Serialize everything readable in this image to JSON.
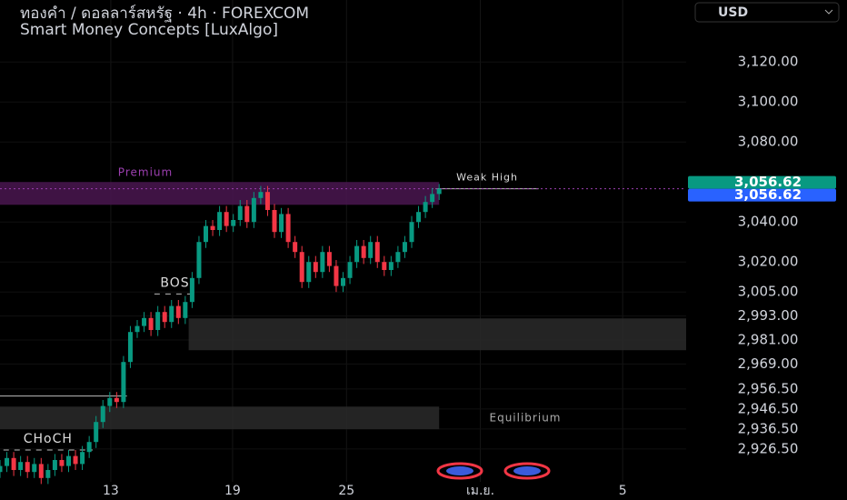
{
  "header": {
    "title": "ทองคำ / ดอลลาร์สหรัฐ · 4h · FOREXCOM",
    "indicator": "Smart Money Concepts [LuxAlgo]",
    "currency": "USD"
  },
  "chart_data": {
    "type": "candlestick",
    "up_color": "#089981",
    "down_color": "#f23645",
    "xlim": [
      0,
      200
    ],
    "ylim": [
      2901,
      3151
    ],
    "xticks": [
      {
        "value": 32.3,
        "label": "13"
      },
      {
        "value": 67.8,
        "label": "19"
      },
      {
        "value": 101,
        "label": "25"
      },
      {
        "value": 140,
        "label": "เม.ย."
      },
      {
        "value": 181.5,
        "label": "5"
      }
    ],
    "yticks": [
      {
        "value": 3120,
        "label": "3,120.00"
      },
      {
        "value": 3100,
        "label": "3,100.00"
      },
      {
        "value": 3080,
        "label": "3,080.00"
      },
      {
        "value": 3040,
        "label": "3,040.00"
      },
      {
        "value": 3020,
        "label": "3,020.00"
      },
      {
        "value": 3005,
        "label": "3,005.00"
      },
      {
        "value": 2993,
        "label": "2,993.00"
      },
      {
        "value": 2981,
        "label": "2,981.00"
      },
      {
        "value": 2969,
        "label": "2,969.00"
      },
      {
        "value": 2956.5,
        "label": "2,956.50"
      },
      {
        "value": 2946.5,
        "label": "2,946.50"
      },
      {
        "value": 2936.5,
        "label": "2,936.50"
      },
      {
        "value": 2926.5,
        "label": "2,926.50"
      }
    ],
    "price_labels": [
      {
        "value": 3056.62,
        "label": "3,056.62",
        "color": "#089981"
      },
      {
        "value": 3056.62,
        "label": "3,056.62",
        "color": "#2962ff"
      }
    ],
    "zones": [
      {
        "label": "Premium",
        "y": [
          3048.6,
          3060
        ],
        "x": [
          0,
          128
        ],
        "color": "#4a1650"
      },
      {
        "y": [
          2975.9,
          2991.8
        ],
        "x": [
          55,
          200
        ],
        "color": "#2a2a2a"
      },
      {
        "label": "Equilibrium",
        "y": [
          2936.4,
          2947.7
        ],
        "x": [
          0,
          128
        ],
        "color": "#2a2a2a"
      }
    ],
    "lines": [
      {
        "label": "Weak High",
        "y": 3056.62,
        "x": [
          127,
          157
        ]
      },
      {
        "label": "BOS",
        "y": 3004,
        "x": [
          45,
          57
        ]
      },
      {
        "label": "CHoCH",
        "y": 2926,
        "x": [
          1,
          27
        ]
      },
      {
        "y": 2953,
        "x": [
          0,
          37
        ]
      }
    ],
    "x": [
      0,
      2,
      4,
      6,
      8,
      10,
      12,
      14,
      16,
      18,
      20,
      22,
      24,
      26,
      28,
      30,
      32,
      34,
      36,
      38,
      40,
      42,
      44,
      46,
      48,
      50,
      52,
      54,
      56,
      58,
      60,
      62,
      64,
      66,
      68,
      70,
      72,
      74,
      76,
      78,
      80,
      82,
      84,
      86,
      88,
      90,
      92,
      94,
      96,
      98,
      100,
      102,
      104,
      106,
      108,
      110,
      112,
      114,
      116,
      118,
      120,
      122,
      124,
      126,
      128
    ],
    "ohlc": [
      [
        2915,
        2921,
        2912,
        2918
      ],
      [
        2918,
        2925,
        2915,
        2922
      ],
      [
        2922,
        2925,
        2913,
        2916
      ],
      [
        2916,
        2923,
        2913,
        2920
      ],
      [
        2920,
        2923,
        2912,
        2915
      ],
      [
        2915,
        2922,
        2912,
        2919
      ],
      [
        2919,
        2922,
        2909,
        2912
      ],
      [
        2912,
        2919,
        2909,
        2916
      ],
      [
        2916,
        2924,
        2913,
        2921
      ],
      [
        2921,
        2924,
        2915,
        2918
      ],
      [
        2918,
        2926,
        2915,
        2923
      ],
      [
        2923,
        2926,
        2916,
        2919
      ],
      [
        2919,
        2928,
        2916,
        2925
      ],
      [
        2925,
        2933,
        2922,
        2930
      ],
      [
        2930,
        2943,
        2927,
        2940
      ],
      [
        2940,
        2951,
        2937,
        2948
      ],
      [
        2948,
        2955,
        2945,
        2952
      ],
      [
        2952,
        2955,
        2947,
        2950
      ],
      [
        2950,
        2973,
        2947,
        2970
      ],
      [
        2970,
        2988,
        2967,
        2985
      ],
      [
        2985,
        2991,
        2982,
        2988
      ],
      [
        2988,
        2995,
        2985,
        2992
      ],
      [
        2992,
        2995,
        2983,
        2986
      ],
      [
        2986,
        2998,
        2983,
        2995
      ],
      [
        2995,
        2998,
        2987,
        2990
      ],
      [
        2990,
        3001,
        2987,
        2998
      ],
      [
        2998,
        3001,
        2989,
        2992
      ],
      [
        2992,
        3003,
        2989,
        3000
      ],
      [
        3000,
        3015,
        2997,
        3012
      ],
      [
        3012,
        3033,
        3009,
        3030
      ],
      [
        3030,
        3041,
        3027,
        3038
      ],
      [
        3038,
        3041,
        3033,
        3036
      ],
      [
        3036,
        3048,
        3033,
        3045
      ],
      [
        3045,
        3048,
        3035,
        3038
      ],
      [
        3038,
        3044,
        3035,
        3041
      ],
      [
        3041,
        3051,
        3038,
        3048
      ],
      [
        3048,
        3051,
        3037,
        3040
      ],
      [
        3040,
        3055,
        3037,
        3052
      ],
      [
        3052,
        3058,
        3049,
        3055
      ],
      [
        3055,
        3058,
        3043,
        3046
      ],
      [
        3046,
        3049,
        3032,
        3035
      ],
      [
        3035,
        3047,
        3032,
        3044
      ],
      [
        3044,
        3047,
        3027,
        3030
      ],
      [
        3030,
        3033,
        3022,
        3025
      ],
      [
        3025,
        3028,
        3007,
        3010
      ],
      [
        3010,
        3023,
        3007,
        3020
      ],
      [
        3020,
        3023,
        3012,
        3015
      ],
      [
        3015,
        3028,
        3012,
        3025
      ],
      [
        3025,
        3028,
        3015,
        3018
      ],
      [
        3018,
        3021,
        3005,
        3008
      ],
      [
        3008,
        3015,
        3005,
        3012
      ],
      [
        3012,
        3023,
        3009,
        3020
      ],
      [
        3020,
        3031,
        3017,
        3028
      ],
      [
        3028,
        3031,
        3019,
        3022
      ],
      [
        3022,
        3033,
        3019,
        3030
      ],
      [
        3030,
        3033,
        3017,
        3020
      ],
      [
        3020,
        3023,
        3013,
        3016
      ],
      [
        3016,
        3023,
        3013,
        3020
      ],
      [
        3020,
        3028,
        3017,
        3025
      ],
      [
        3025,
        3033,
        3022,
        3030
      ],
      [
        3030,
        3043,
        3027,
        3040
      ],
      [
        3040,
        3048,
        3037,
        3045
      ],
      [
        3045,
        3053,
        3042,
        3050
      ],
      [
        3050,
        3057,
        3047,
        3054
      ],
      [
        3054,
        3059,
        3051,
        3056.62
      ]
    ]
  }
}
